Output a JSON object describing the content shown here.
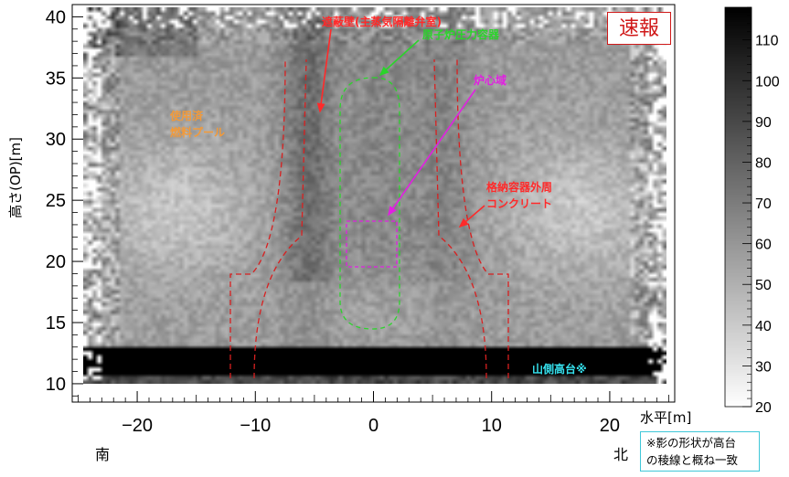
{
  "chart_data": {
    "type": "heatmap",
    "xlabel": "水平[m]",
    "ylabel": "高さ(OP)[m]",
    "xlim": [
      -25.5,
      25.5
    ],
    "ylim": [
      8.5,
      41
    ],
    "x_ticks": [
      -20,
      -10,
      0,
      10,
      20
    ],
    "y_ticks": [
      10,
      15,
      20,
      25,
      30,
      35,
      40
    ],
    "colorbar": {
      "min": 20,
      "max": 118,
      "ticks": [
        20,
        30,
        40,
        50,
        60,
        70,
        80,
        90,
        100,
        110
      ],
      "colormap": "grayscale"
    },
    "labels": {
      "shield_wall": "遮蔽壁(主蒸気隔離弁室)",
      "rpv": "原子炉圧力容器",
      "core": "炉心域",
      "spent_fuel_pool_l1": "使用済",
      "spent_fuel_pool_l2": "燃料プール",
      "containment_l1": "格納容器外周",
      "containment_l2": "コンクリート",
      "hill": "山側高台※",
      "south": "南",
      "north": "北"
    },
    "label_colors": {
      "shield_wall": "#ff2a2a",
      "rpv": "#2bd42b",
      "core": "#e020e0",
      "spent_fuel_pool": "#f29a3a",
      "containment": "#ff2a2a",
      "hill": "#36e3f0"
    }
  },
  "badge": "速報",
  "note": "※影の形状が高台\nの稜線と概ね一致"
}
